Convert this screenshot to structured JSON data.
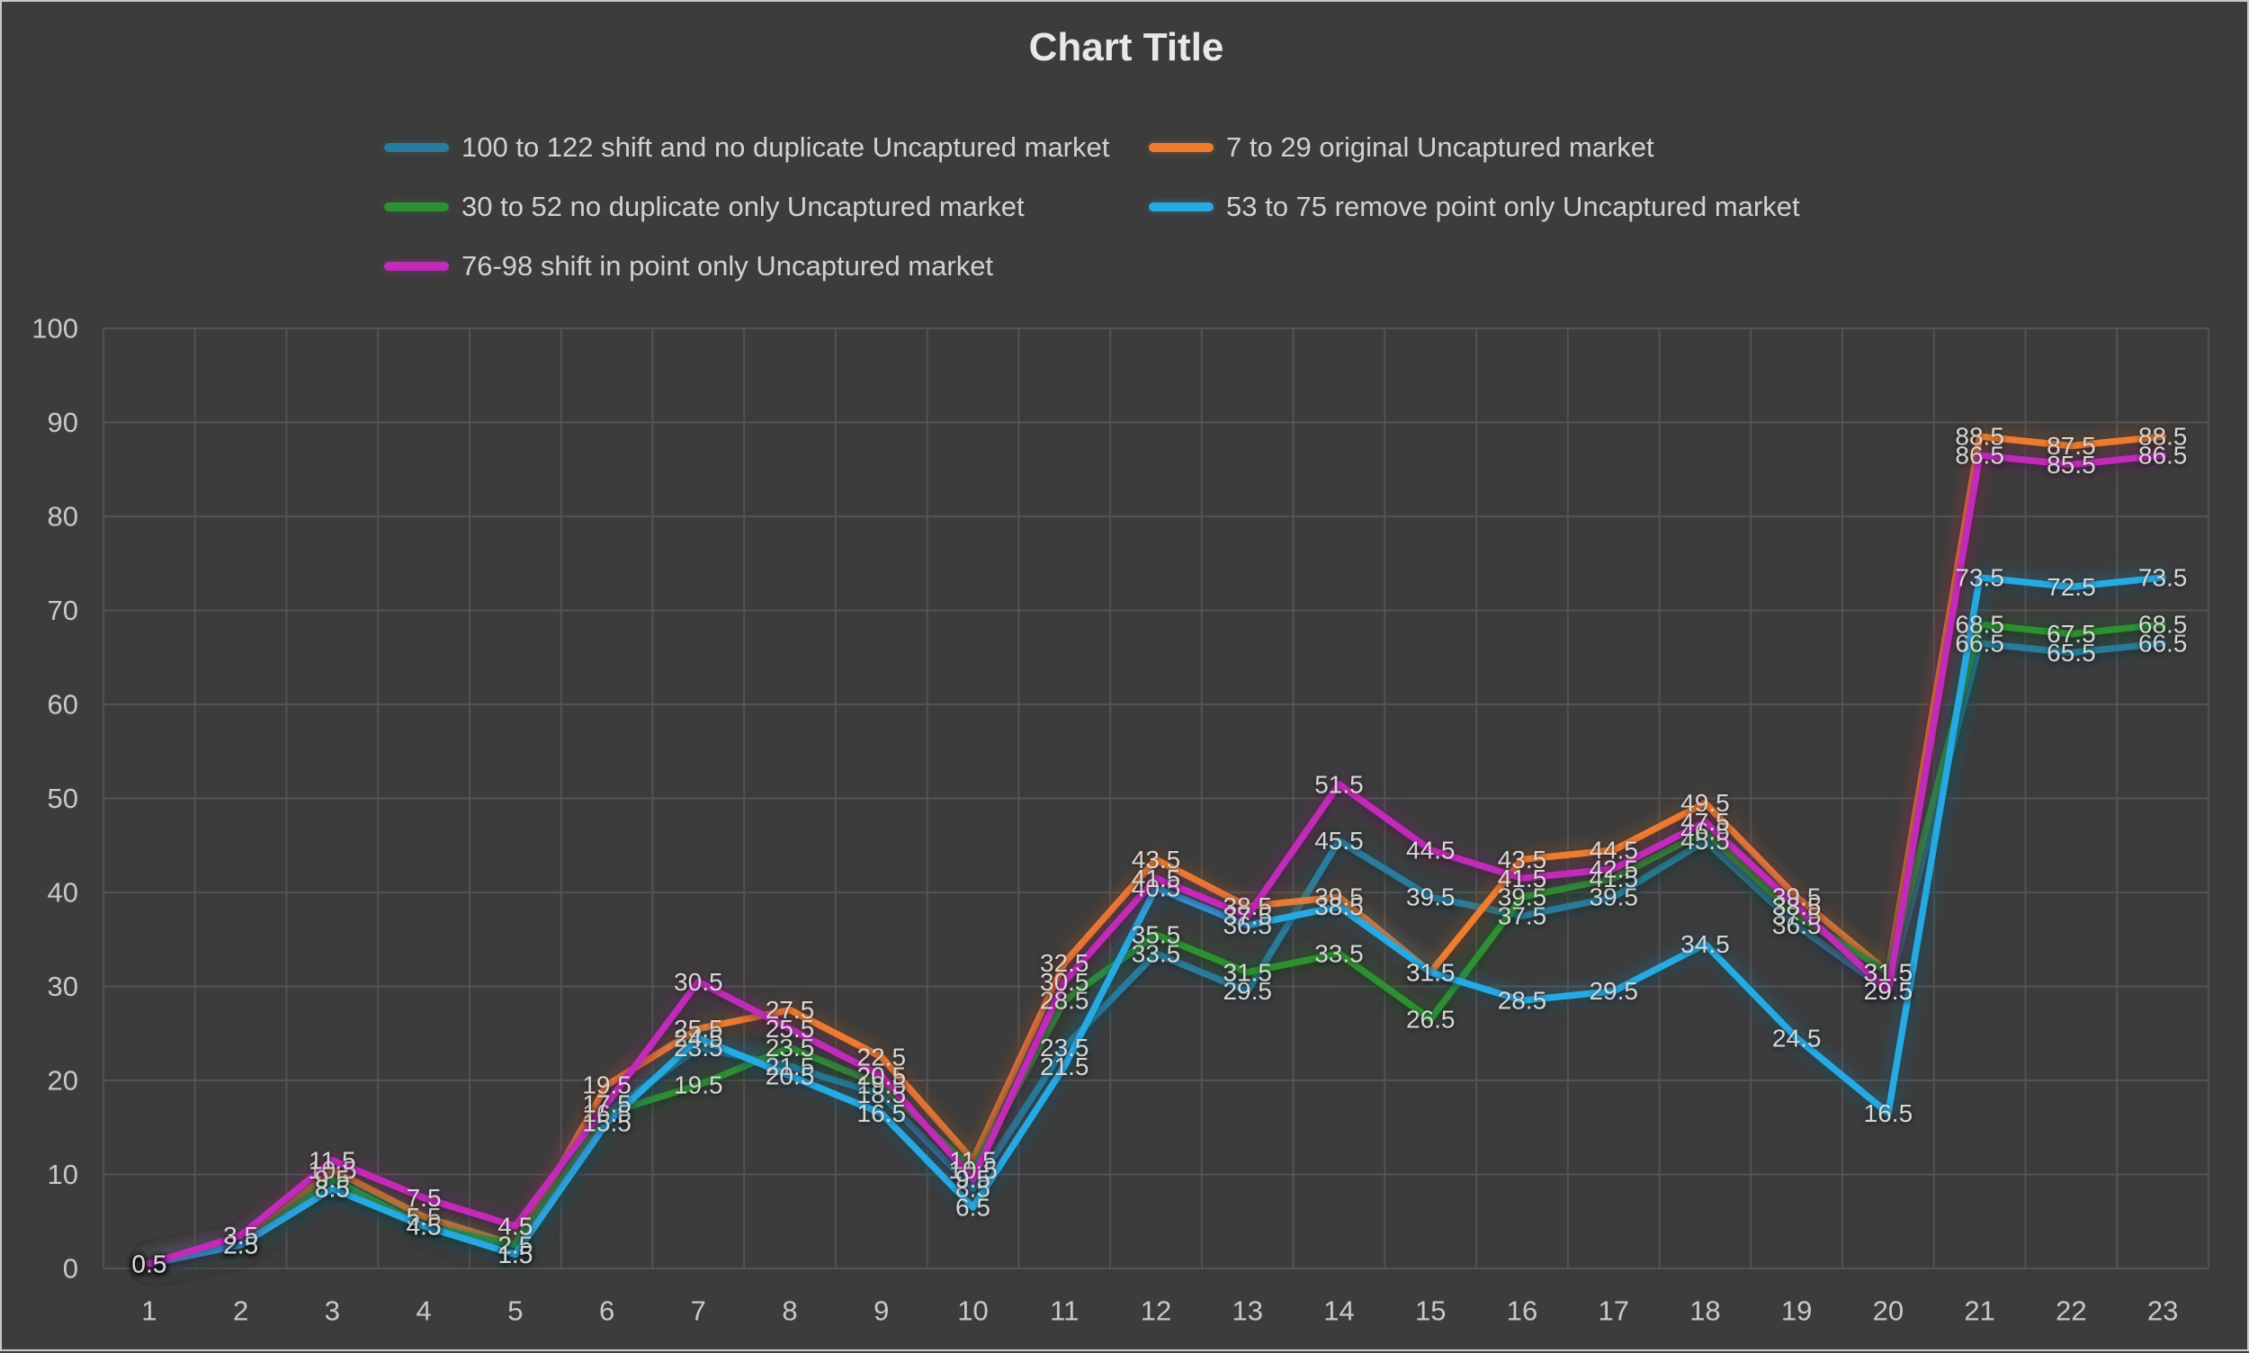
{
  "chart_data": {
    "type": "line",
    "title": "Chart Title",
    "xlabel": "",
    "ylabel": "",
    "categories": [
      "1",
      "2",
      "3",
      "4",
      "5",
      "6",
      "7",
      "8",
      "9",
      "10",
      "11",
      "12",
      "13",
      "14",
      "15",
      "16",
      "17",
      "18",
      "19",
      "20",
      "21",
      "22",
      "23"
    ],
    "ylim": [
      0,
      100
    ],
    "yticks": [
      0,
      10,
      20,
      30,
      40,
      50,
      60,
      70,
      80,
      90,
      100
    ],
    "grid": true,
    "legend_position": "top",
    "data_labels": "center",
    "series": [
      {
        "name": "100 to 122 shift and no duplicate Uncaptured market",
        "color": "#2B7C9C",
        "values": [
          0.5,
          2.5,
          8.5,
          4.5,
          1.5,
          16.5,
          23.5,
          21.5,
          18.5,
          8.5,
          23.5,
          33.5,
          29.5,
          45.5,
          39.5,
          37.5,
          39.5,
          45.5,
          36.5,
          29.5,
          66.5,
          65.5,
          66.5
        ]
      },
      {
        "name": "7 to 29 original Uncaptured market",
        "color": "#ED7D31",
        "values": [
          0.5,
          2.5,
          10.5,
          5.5,
          2.5,
          19.5,
          25.5,
          27.5,
          22.5,
          11.5,
          32.5,
          43.5,
          38.5,
          39.5,
          31.5,
          43.5,
          44.5,
          49.5,
          39.5,
          31.5,
          88.5,
          87.5,
          88.5
        ]
      },
      {
        "name": "30 to 52 no duplicate only Uncaptured market",
        "color": "#2E8F33",
        "values": [
          0.5,
          2.5,
          9.5,
          4.5,
          2.5,
          16.5,
          19.5,
          23.5,
          19.5,
          10.5,
          28.5,
          35.5,
          31.5,
          33.5,
          26.5,
          39.5,
          41.5,
          46.5,
          37.5,
          31.5,
          68.5,
          67.5,
          68.5
        ]
      },
      {
        "name": "53 to 75 remove point only Uncaptured market",
        "color": "#29A9E1",
        "values": [
          0.5,
          2.5,
          8.5,
          4.5,
          1.5,
          15.5,
          24.5,
          20.5,
          16.5,
          6.5,
          21.5,
          40.5,
          36.5,
          38.5,
          31.5,
          28.5,
          29.5,
          34.5,
          24.5,
          16.5,
          73.5,
          72.5,
          73.5
        ]
      },
      {
        "name": "76-98 shift in point only Uncaptured market",
        "color": "#C02BB8",
        "values": [
          0.5,
          3.5,
          11.5,
          7.5,
          4.5,
          17.5,
          30.5,
          25.5,
          20.5,
          9.5,
          30.5,
          41.5,
          37.5,
          51.5,
          44.5,
          41.5,
          42.5,
          47.5,
          38.5,
          29.5,
          86.5,
          85.5,
          86.5
        ]
      }
    ],
    "colors": {
      "background": "#3C3C3C",
      "gridline": "#535353",
      "axis_text": "#C9C9C9",
      "data_label": "#D6D6D6",
      "title_text": "#E8E8E8",
      "legend_text": "#D2D2D2",
      "frame_border": "#C8C8C8"
    }
  }
}
